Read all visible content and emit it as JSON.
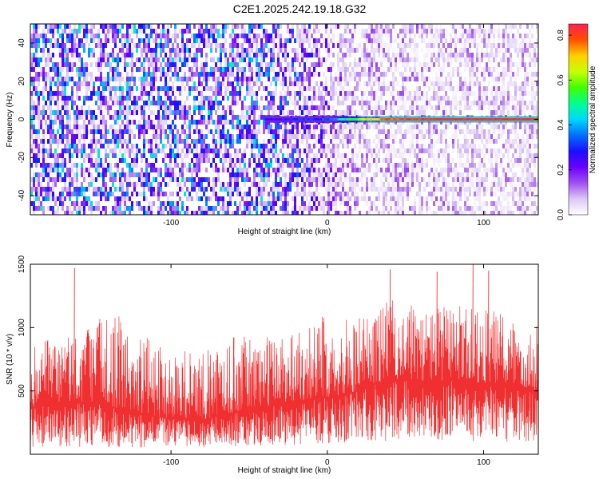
{
  "figure": {
    "title": "C2E1.2025.242.19.18.G32"
  },
  "chart_data": [
    {
      "type": "heatmap",
      "xlabel": "Height of straight line (km)",
      "ylabel": "Frequency (Hz)",
      "xlim": [
        -190,
        135
      ],
      "ylim": [
        -50,
        50
      ],
      "x_ticks": [
        -100,
        0,
        100
      ],
      "y_ticks": [
        -40,
        -20,
        0,
        20,
        40
      ],
      "colorbar": {
        "label": "Normalized spectral amplitude",
        "range": [
          0.0,
          0.85
        ],
        "ticks": [
          0.0,
          0.2,
          0.4,
          0.6,
          0.8
        ],
        "colors": [
          "#ffffff",
          "#dcc8f5",
          "#a050f0",
          "#6a00ff",
          "#1a10ff",
          "#0070ff",
          "#00d8ff",
          "#00ff90",
          "#40ff00",
          "#c8ff00",
          "#ffd000",
          "#ff5000",
          "#ff2050"
        ]
      },
      "signal": {
        "frequency_hz": 0,
        "onset_km": -40,
        "amplitude_profile": [
          {
            "x": -40,
            "value": 0.25
          },
          {
            "x": -20,
            "value": 0.28
          },
          {
            "x": 0,
            "value": 0.35
          },
          {
            "x": 20,
            "value": 0.6
          },
          {
            "x": 40,
            "value": 0.8
          },
          {
            "x": 80,
            "value": 0.85
          },
          {
            "x": 135,
            "value": 0.85
          }
        ]
      },
      "background_noise": {
        "x_profile": [
          {
            "x": -190,
            "level": 0.13
          },
          {
            "x": -40,
            "level": 0.13
          },
          {
            "x": -15,
            "level": 0.09
          },
          {
            "x": 15,
            "level": 0.045
          },
          {
            "x": 135,
            "level": 0.035
          }
        ]
      }
    },
    {
      "type": "line",
      "xlabel": "Height of straight line (km)",
      "ylabel": "SNR (10 * v/v)",
      "xlim": [
        -190,
        135
      ],
      "ylim": [
        0,
        1500
      ],
      "x_ticks": [
        -100,
        0,
        100
      ],
      "y_ticks": [
        500,
        1000,
        1500
      ],
      "series": [
        {
          "color": "#f03030",
          "envelope_max": [
            {
              "x": -190,
              "value": 850
            },
            {
              "x": -160,
              "value": 1000
            },
            {
              "x": -140,
              "value": 1150
            },
            {
              "x": -110,
              "value": 880
            },
            {
              "x": -80,
              "value": 800
            },
            {
              "x": -60,
              "value": 930
            },
            {
              "x": -40,
              "value": 950
            },
            {
              "x": -20,
              "value": 1020
            },
            {
              "x": 0,
              "value": 1100
            },
            {
              "x": 20,
              "value": 1080
            },
            {
              "x": 40,
              "value": 1250
            },
            {
              "x": 60,
              "value": 1150
            },
            {
              "x": 80,
              "value": 1200
            },
            {
              "x": 100,
              "value": 1150
            },
            {
              "x": 120,
              "value": 1100
            },
            {
              "x": 135,
              "value": 1000
            }
          ],
          "envelope_min": [
            {
              "x": -190,
              "value": 60
            },
            {
              "x": -100,
              "value": 50
            },
            {
              "x": -60,
              "value": 60
            },
            {
              "x": 0,
              "value": 80
            },
            {
              "x": 50,
              "value": 110
            },
            {
              "x": 100,
              "value": 100
            },
            {
              "x": 135,
              "value": 100
            }
          ],
          "mean": [
            {
              "x": -190,
              "value": 380
            },
            {
              "x": -150,
              "value": 420
            },
            {
              "x": -130,
              "value": 350
            },
            {
              "x": -100,
              "value": 280
            },
            {
              "x": -80,
              "value": 270
            },
            {
              "x": -60,
              "value": 330
            },
            {
              "x": -40,
              "value": 380
            },
            {
              "x": -20,
              "value": 420
            },
            {
              "x": 0,
              "value": 450
            },
            {
              "x": 20,
              "value": 500
            },
            {
              "x": 40,
              "value": 600
            },
            {
              "x": 60,
              "value": 580
            },
            {
              "x": 80,
              "value": 580
            },
            {
              "x": 100,
              "value": 560
            },
            {
              "x": 120,
              "value": 540
            },
            {
              "x": 135,
              "value": 500
            }
          ],
          "peaks": [
            {
              "x": -162,
              "value": 1470
            },
            {
              "x": -60,
              "value": 920
            },
            {
              "x": 40,
              "value": 1460
            },
            {
              "x": 70,
              "value": 1440
            },
            {
              "x": 93,
              "value": 1510
            },
            {
              "x": 103,
              "value": 1450
            }
          ]
        }
      ]
    }
  ]
}
